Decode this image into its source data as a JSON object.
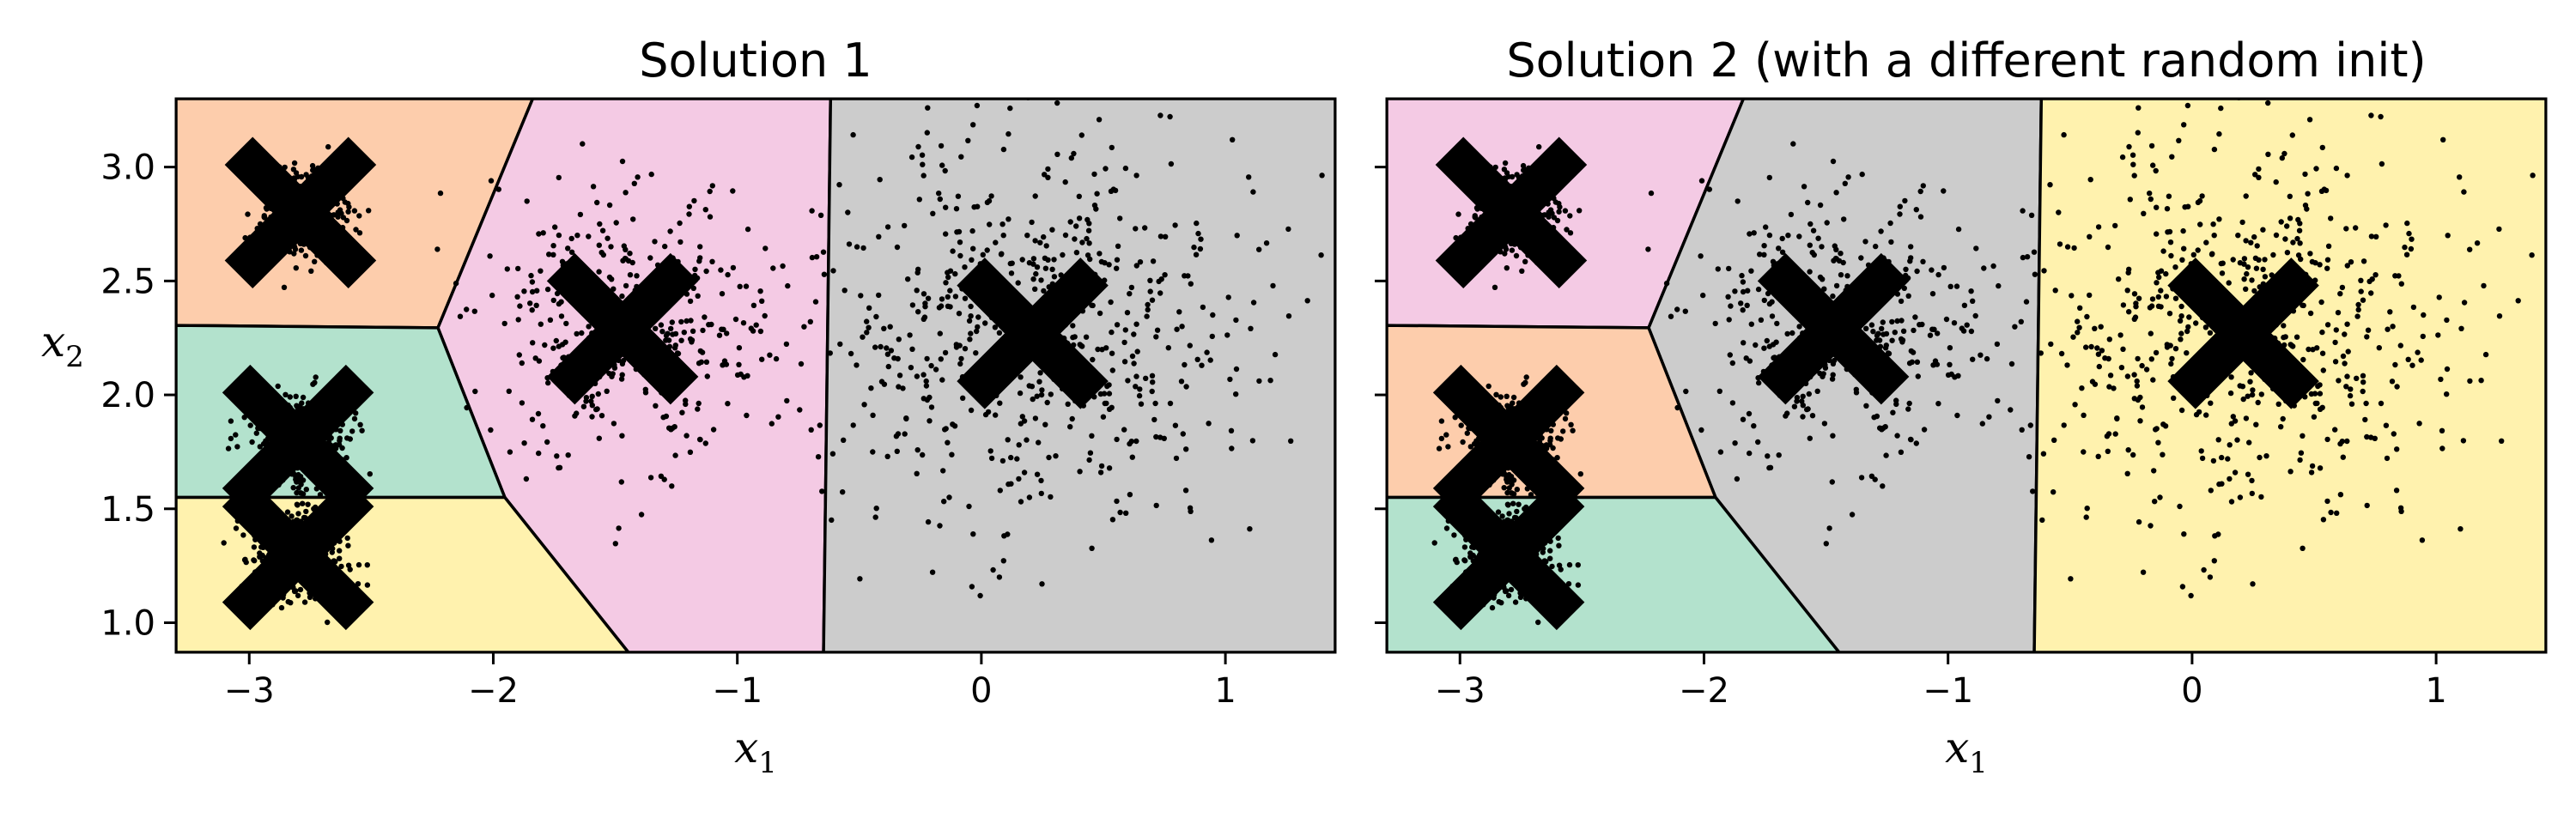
{
  "chart_data": [
    {
      "type": "scatter",
      "title": "Solution 1",
      "xlabel": "x",
      "xlabel_sub": "1",
      "ylabel": "x",
      "ylabel_sub": "2",
      "xlim": [
        -3.3,
        1.45
      ],
      "ylim": [
        0.87,
        3.3
      ],
      "xticks": [
        -3,
        -2,
        -1,
        0,
        1
      ],
      "xtick_labels": [
        "−3",
        "−2",
        "−1",
        "0",
        "1"
      ],
      "yticks": [
        1.0,
        1.5,
        2.0,
        2.5,
        3.0
      ],
      "ytick_labels": [
        "1.0",
        "1.5",
        "2.0",
        "2.5",
        "3.0"
      ],
      "grid": false,
      "centroids": [
        {
          "x": -2.79,
          "y": 2.8
        },
        {
          "x": -1.47,
          "y": 2.29
        },
        {
          "x": 0.21,
          "y": 2.27
        },
        {
          "x": -2.8,
          "y": 1.8
        },
        {
          "x": -2.8,
          "y": 1.3
        }
      ],
      "region_colors": [
        "#fdcdac",
        "#f4cae4",
        "#cccccc",
        "#b3e2cd",
        "#fff2ae"
      ],
      "point_color": "#000000",
      "marker_color": "#000000"
    },
    {
      "type": "scatter",
      "title": "Solution 2 (with a different random init)",
      "xlabel": "x",
      "xlabel_sub": "1",
      "ylabel": "",
      "ylabel_sub": "",
      "xlim": [
        -3.3,
        1.45
      ],
      "ylim": [
        0.87,
        3.3
      ],
      "xticks": [
        -3,
        -2,
        -1,
        0,
        1
      ],
      "xtick_labels": [
        "−3",
        "−2",
        "−1",
        "0",
        "1"
      ],
      "yticks": [
        1.0,
        1.5,
        2.0,
        2.5,
        3.0
      ],
      "ytick_labels": [],
      "grid": false,
      "centroids": [
        {
          "x": -2.79,
          "y": 2.8
        },
        {
          "x": -1.47,
          "y": 2.29
        },
        {
          "x": 0.21,
          "y": 2.27
        },
        {
          "x": -2.8,
          "y": 1.8
        },
        {
          "x": -2.8,
          "y": 1.3
        }
      ],
      "region_colors": [
        "#f4cae4",
        "#cccccc",
        "#fff2ae",
        "#fdcdac",
        "#b3e2cd"
      ],
      "point_color": "#000000",
      "marker_color": "#000000"
    }
  ]
}
